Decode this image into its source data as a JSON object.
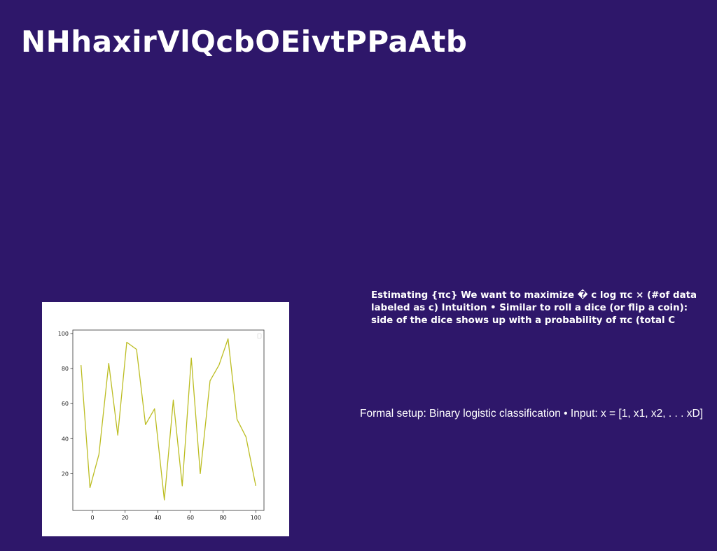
{
  "slide": {
    "title": "NHhaxirVlQcbOEivtPPaAtb",
    "bold_text_lines": [
      "Estimating {πc} We want to maximize � c log πc × (#of data",
      "labeled as c) Intuition • Similar to roll a dice (or flip a coin):",
      "side of the dice shows up with a probability of πc (total C"
    ],
    "regular_text": "Formal setup: Binary logistic classification • Input: x = [1, x1, x2, . . . xD]"
  },
  "colors": {
    "background": "#2e176a",
    "text": "#ffffff",
    "panel": "#ffffff",
    "line": "#bcbd22",
    "axis": "#333333"
  },
  "chart_data": {
    "type": "line",
    "title": "",
    "xlabel": "",
    "ylabel": "",
    "xlim": [
      -12,
      105
    ],
    "ylim": [
      -1,
      102
    ],
    "x_ticks": [
      0,
      20,
      40,
      60,
      80,
      100
    ],
    "y_ticks": [
      20,
      40,
      60,
      80,
      100
    ],
    "grid": false,
    "legend": "top-right (empty)",
    "series": [
      {
        "color": "#bcbd22",
        "x": [
          -7,
          -1.5,
          4,
          10,
          15.5,
          21,
          27,
          32.5,
          38,
          44,
          49.5,
          55,
          60.5,
          66,
          72,
          77.5,
          83,
          88.5,
          94,
          100
        ],
        "y": [
          82,
          12,
          31,
          83,
          42,
          95,
          91,
          48,
          57,
          5,
          62,
          13,
          86,
          20,
          73,
          82,
          97,
          51,
          41,
          13
        ]
      }
    ]
  }
}
